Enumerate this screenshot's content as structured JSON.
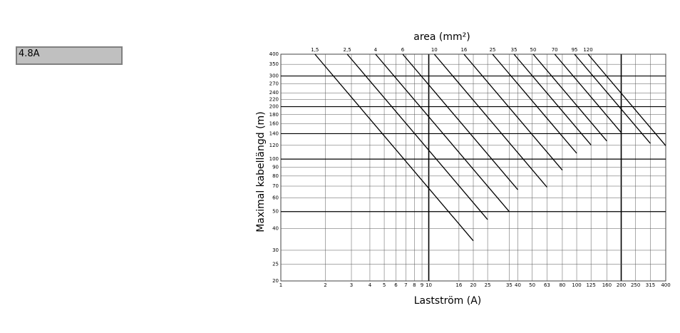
{
  "input": {
    "value": "4.8A"
  },
  "chart_data": {
    "type": "line",
    "title": "area (mm²)",
    "x_label": "Lastström (A)",
    "y_label": "Maximal kabellängd (m)",
    "log_x": true,
    "log_y": true,
    "grid": true,
    "color": "#000000",
    "xlim": [
      1,
      400
    ],
    "ylim": [
      20,
      400
    ],
    "xticks": [
      1,
      2,
      3,
      4,
      5,
      6,
      7,
      8,
      9,
      10,
      16,
      20,
      25,
      35,
      40,
      50,
      63,
      80,
      100,
      125,
      160,
      200,
      250,
      315,
      400
    ],
    "yticks": [
      20,
      25,
      30,
      40,
      50,
      60,
      70,
      80,
      90,
      100,
      120,
      140,
      160,
      180,
      200,
      220,
      240,
      270,
      300,
      350,
      400
    ],
    "emphasized_xticks": [
      10,
      200
    ],
    "emphasized_yticks": [
      50,
      100,
      140,
      200,
      300
    ],
    "series": [
      {
        "name": "1,5",
        "x": [
          1.7,
          20
        ],
        "values": [
          400,
          34
        ]
      },
      {
        "name": "2,5",
        "x": [
          2.81,
          25
        ],
        "values": [
          400,
          45
        ]
      },
      {
        "name": "4",
        "x": [
          4.37,
          35
        ],
        "values": [
          400,
          50
        ]
      },
      {
        "name": "6",
        "x": [
          6.67,
          40
        ],
        "values": [
          400,
          66.7
        ]
      },
      {
        "name": "10",
        "x": [
          10.9,
          63
        ],
        "values": [
          400,
          69
        ]
      },
      {
        "name": "16",
        "x": [
          17.3,
          80
        ],
        "values": [
          400,
          86.5
        ]
      },
      {
        "name": "25",
        "x": [
          27,
          100
        ],
        "values": [
          400,
          108
        ]
      },
      {
        "name": "35",
        "x": [
          37.7,
          125
        ],
        "values": [
          400,
          120.6
        ]
      },
      {
        "name": "50",
        "x": [
          50.8,
          160
        ],
        "values": [
          400,
          127
        ]
      },
      {
        "name": "70",
        "x": [
          71,
          200
        ],
        "values": [
          400,
          142
        ]
      },
      {
        "name": "95",
        "x": [
          96.7,
          315
        ],
        "values": [
          400,
          123
        ]
      },
      {
        "name": "120",
        "x": [
          119.4,
          400
        ],
        "values": [
          400,
          119.4
        ]
      }
    ]
  }
}
